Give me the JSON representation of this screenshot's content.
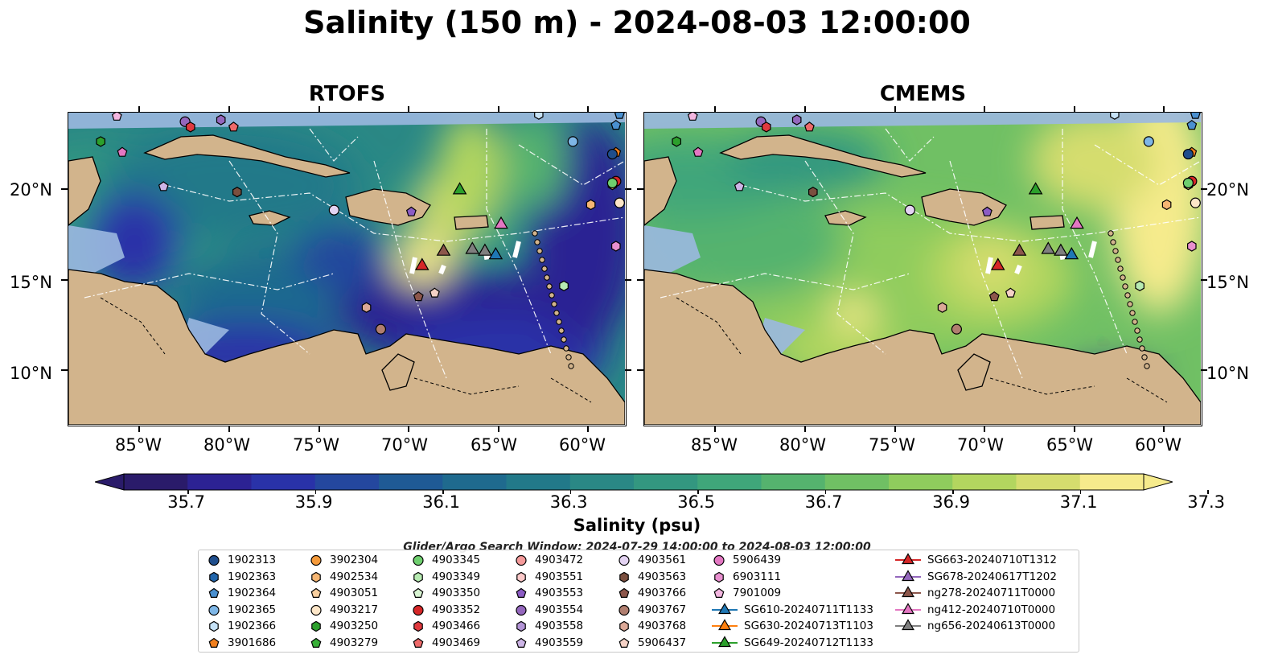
{
  "title": "Salinity (150 m) - 2024-08-03 12:00:00",
  "panels": [
    {
      "name": "RTOFS",
      "theme": "rtofs"
    },
    {
      "name": "CMEMS",
      "theme": "cmems"
    }
  ],
  "lon_labels": [
    "85°W",
    "80°W",
    "75°W",
    "70°W",
    "65°W",
    "60°W"
  ],
  "lat_labels": [
    "20°N",
    "15°N",
    "10°N"
  ],
  "colorbar": {
    "colormap": "haline",
    "ticks": [
      "35.7",
      "35.9",
      "36.1",
      "36.3",
      "36.5",
      "36.7",
      "36.9",
      "37.1",
      "37.3"
    ],
    "label": "Salinity (psu)",
    "colors": [
      "#2a1b6a",
      "#2c2293",
      "#2932a8",
      "#24479e",
      "#1f5a95",
      "#1f6a8e",
      "#227989",
      "#2a8885",
      "#339780",
      "#3fa67a",
      "#55b36e",
      "#70c064",
      "#8fcc5d",
      "#b3d65f",
      "#d5dd6e",
      "#f6eb8c"
    ]
  },
  "search_window": "Glider/Argo Search Window: 2024-07-29 14:00:00 to 2024-08-03 12:00:00",
  "legend": {
    "columns": [
      [
        {
          "label": "1902313",
          "shape": "circle",
          "color": "#1f4e8c"
        },
        {
          "label": "1902363",
          "shape": "hexagon",
          "color": "#2166ac"
        },
        {
          "label": "1902364",
          "shape": "pentagon",
          "color": "#4a90d0"
        },
        {
          "label": "1902365",
          "shape": "circle",
          "color": "#7eb6e6"
        },
        {
          "label": "1902366",
          "shape": "hexagon",
          "color": "#c6e2f7"
        },
        {
          "label": "3901686",
          "shape": "pentagon",
          "color": "#f07f1e"
        }
      ],
      [
        {
          "label": "3902304",
          "shape": "circle",
          "color": "#f59a3a"
        },
        {
          "label": "4902534",
          "shape": "hexagon",
          "color": "#f6b673"
        },
        {
          "label": "4903051",
          "shape": "pentagon",
          "color": "#f8cf9f"
        },
        {
          "label": "4903217",
          "shape": "circle",
          "color": "#fde6c8"
        },
        {
          "label": "4903250",
          "shape": "hexagon",
          "color": "#2ca02c"
        },
        {
          "label": "4903279",
          "shape": "pentagon",
          "color": "#38b038"
        }
      ],
      [
        {
          "label": "4903345",
          "shape": "circle",
          "color": "#6fcf6f"
        },
        {
          "label": "4903349",
          "shape": "hexagon",
          "color": "#b7ebb2"
        },
        {
          "label": "4903350",
          "shape": "pentagon",
          "color": "#d8f4d2"
        },
        {
          "label": "4903352",
          "shape": "circle",
          "color": "#d62728"
        },
        {
          "label": "4903466",
          "shape": "hexagon",
          "color": "#e0393e"
        },
        {
          "label": "4903469",
          "shape": "pentagon",
          "color": "#ee6a6a"
        }
      ],
      [
        {
          "label": "4903472",
          "shape": "circle",
          "color": "#f49a9a"
        },
        {
          "label": "4903551",
          "shape": "hexagon",
          "color": "#fcc9c9"
        },
        {
          "label": "4903553",
          "shape": "pentagon",
          "color": "#8c5cc4"
        },
        {
          "label": "4903554",
          "shape": "circle",
          "color": "#9467bd"
        },
        {
          "label": "4903558",
          "shape": "hexagon",
          "color": "#b394d6"
        },
        {
          "label": "4903559",
          "shape": "pentagon",
          "color": "#cdb5e6"
        }
      ],
      [
        {
          "label": "4903561",
          "shape": "circle",
          "color": "#e3d3f2"
        },
        {
          "label": "4903563",
          "shape": "hexagon",
          "color": "#7b4f3f"
        },
        {
          "label": "4903766",
          "shape": "pentagon",
          "color": "#8c564b"
        },
        {
          "label": "4903767",
          "shape": "circle",
          "color": "#b07e6f"
        },
        {
          "label": "4903768",
          "shape": "hexagon",
          "color": "#dba897"
        },
        {
          "label": "5906437",
          "shape": "pentagon",
          "color": "#f5d2c6"
        }
      ],
      [
        {
          "label": "5906439",
          "shape": "circle",
          "color": "#e377c2"
        },
        {
          "label": "6903111",
          "shape": "hexagon",
          "color": "#e88fcf"
        },
        {
          "label": "7901009",
          "shape": "pentagon",
          "color": "#f3b6e0"
        },
        {
          "label": "SG610-20240711T1133",
          "shape": "triangle",
          "color": "#1f77b4"
        },
        {
          "label": "SG630-20240713T1103",
          "shape": "triangle",
          "color": "#ff7f0e"
        },
        {
          "label": "SG649-20240712T1133",
          "shape": "triangle",
          "color": "#2ca02c"
        }
      ],
      [
        {
          "label": "SG663-20240710T1312",
          "shape": "triangle",
          "color": "#d62728"
        },
        {
          "label": "SG678-20240617T1202",
          "shape": "triangle",
          "color": "#9467bd"
        },
        {
          "label": "ng278-20240711T0000",
          "shape": "triangle",
          "color": "#8c564b"
        },
        {
          "label": "ng412-20240710T0000",
          "shape": "triangle",
          "color": "#e377c2"
        },
        {
          "label": "ng656-20240613T0000",
          "shape": "triangle",
          "color": "#7f7f7f"
        }
      ]
    ]
  }
}
